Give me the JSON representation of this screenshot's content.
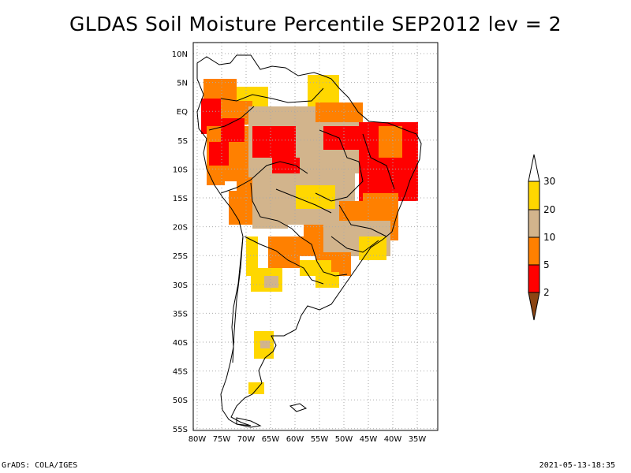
{
  "title": "GLDAS Soil Moisture Percentile SEP2012 lev = 2",
  "footer": {
    "left": "GrADS: COLA/IGES",
    "right": "2021-05-13-18:35"
  },
  "colors": {
    "lt2": "#8b4513",
    "p2_5": "#ff0000",
    "p5_10": "#ff8000",
    "p10_20": "#d2b48c",
    "p20_30": "#ffd700",
    "gt30": "#ffffff",
    "outline": "#000000",
    "grid": "#aaaaaa"
  },
  "map": {
    "lon_range": [
      -80,
      -30
    ],
    "lat_range": [
      -56,
      12
    ],
    "lat_ticks": [
      "10N",
      "5N",
      "EQ",
      "5S",
      "10S",
      "15S",
      "20S",
      "25S",
      "30S",
      "35S",
      "40S",
      "45S",
      "50S",
      "55S"
    ],
    "lon_ticks": [
      "80W",
      "75W",
      "70W",
      "65W",
      "60W",
      "55W",
      "50W",
      "45W",
      "40W",
      "35W"
    ]
  },
  "legend": {
    "labels": [
      "30",
      "20",
      "10",
      "5",
      "2"
    ]
  }
}
